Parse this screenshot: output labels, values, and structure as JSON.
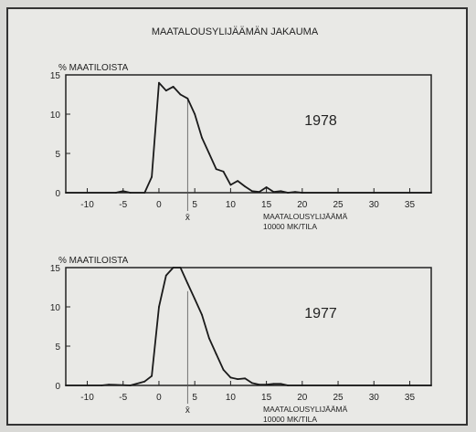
{
  "figure_title": "MAATALOUSYLIJÄÄMÄN JAKAUMA",
  "chart_data": [
    {
      "type": "line",
      "title": "MAATALOUSYLIJÄÄMÄN JAKAUMA",
      "annotation": "1978",
      "ylabel": "% MAATILOISTA",
      "xlabel_line1": "MAATALOUSYLIJÄÄMÄ",
      "xlabel_line2": "10000 MK/TILA",
      "mean_marker_label": "x̄",
      "mean_x": 4,
      "xlim": [
        -13,
        38
      ],
      "ylim": [
        0,
        15
      ],
      "xticks": [
        -10,
        -5,
        0,
        5,
        10,
        15,
        20,
        25,
        30,
        35
      ],
      "yticks": [
        0,
        5,
        10,
        15
      ],
      "grid": false,
      "x": [
        -13,
        -6,
        -5,
        -4,
        -2,
        -1,
        0,
        1,
        2,
        3,
        4,
        5,
        6,
        7,
        8,
        9,
        10,
        11,
        12,
        13,
        14,
        15,
        16,
        17,
        18,
        19,
        20,
        25,
        30,
        35,
        38
      ],
      "y": [
        0,
        0,
        0.2,
        0,
        0,
        2,
        14,
        13,
        13.5,
        12.5,
        12,
        10,
        7,
        5,
        3,
        2.7,
        1,
        1.5,
        0.8,
        0.2,
        0.1,
        0.7,
        0.1,
        0.2,
        0,
        0.1,
        0,
        0,
        0,
        0,
        0
      ]
    },
    {
      "type": "line",
      "title": "",
      "annotation": "1977",
      "ylabel": "% MAATILOISTA",
      "xlabel_line1": "MAATALOUSYLIJÄÄMÄ",
      "xlabel_line2": "10000 MK/TILA",
      "mean_marker_label": "x̄",
      "mean_x": 4,
      "xlim": [
        -13,
        38
      ],
      "ylim": [
        0,
        15
      ],
      "xticks": [
        -10,
        -5,
        0,
        5,
        10,
        15,
        20,
        25,
        30,
        35
      ],
      "yticks": [
        0,
        5,
        10,
        15
      ],
      "grid": false,
      "x": [
        -13,
        -8,
        -7,
        -4,
        -2,
        -1,
        0,
        1,
        2,
        3,
        4,
        5,
        6,
        7,
        8,
        9,
        10,
        11,
        12,
        13,
        14,
        15,
        16,
        17,
        18,
        20,
        25,
        30,
        35,
        38
      ],
      "y": [
        0,
        0,
        0.1,
        0,
        0.5,
        1.2,
        10,
        14,
        15,
        15,
        13,
        11,
        9,
        6,
        4,
        2,
        1,
        0.8,
        0.9,
        0.3,
        0.1,
        0.1,
        0.2,
        0.2,
        0,
        0,
        0,
        0,
        0,
        0
      ]
    }
  ]
}
